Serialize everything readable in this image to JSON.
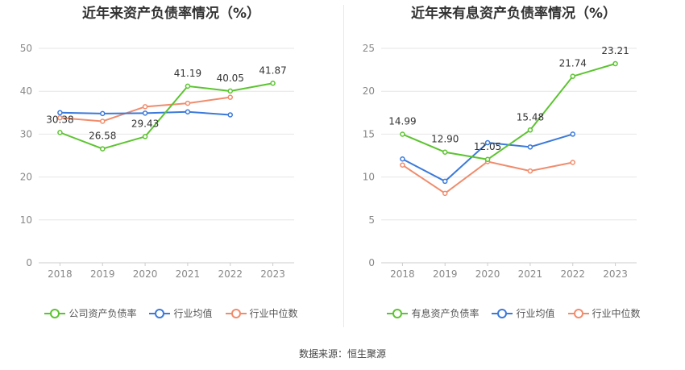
{
  "chart_data": [
    {
      "type": "line",
      "title": "近年来资产负债率情况（%）",
      "categories": [
        "2018",
        "2019",
        "2020",
        "2021",
        "2022",
        "2023"
      ],
      "ylim": [
        0,
        50
      ],
      "yticks": [
        0,
        10,
        20,
        30,
        40,
        50
      ],
      "grid": true,
      "legend_position": "bottom",
      "series": [
        {
          "name": "公司资产负债率",
          "color": "#5cc430",
          "values": [
            30.38,
            26.58,
            29.43,
            41.19,
            40.05,
            41.87
          ],
          "labels": [
            "30.38",
            "26.58",
            "29.43",
            "41.19",
            "40.05",
            "41.87"
          ]
        },
        {
          "name": "行业均值",
          "color": "#3b7ad9",
          "values": [
            35.0,
            34.8,
            34.9,
            35.2,
            34.5,
            null
          ]
        },
        {
          "name": "行业中位数",
          "color": "#f08c6c",
          "values": [
            33.8,
            33.0,
            36.4,
            37.2,
            38.6,
            null
          ]
        }
      ]
    },
    {
      "type": "line",
      "title": "近年来有息资产负债率情况（%）",
      "categories": [
        "2018",
        "2019",
        "2020",
        "2021",
        "2022",
        "2023"
      ],
      "ylim": [
        0,
        25
      ],
      "yticks": [
        0,
        5,
        10,
        15,
        20,
        25
      ],
      "grid": true,
      "legend_position": "bottom",
      "series": [
        {
          "name": "有息资产负债率",
          "color": "#5cc430",
          "values": [
            14.99,
            12.9,
            12.05,
            15.48,
            21.74,
            23.21
          ],
          "labels": [
            "14.99",
            "12.90",
            "12.05",
            "15.48",
            "21.74",
            "23.21"
          ]
        },
        {
          "name": "行业均值",
          "color": "#3b7ad9",
          "values": [
            12.1,
            9.5,
            14.0,
            13.5,
            15.0,
            null
          ]
        },
        {
          "name": "行业中位数",
          "color": "#f08c6c",
          "values": [
            11.4,
            8.1,
            11.8,
            10.7,
            11.7,
            null
          ]
        }
      ]
    }
  ],
  "source": "数据来源：恒生聚源"
}
